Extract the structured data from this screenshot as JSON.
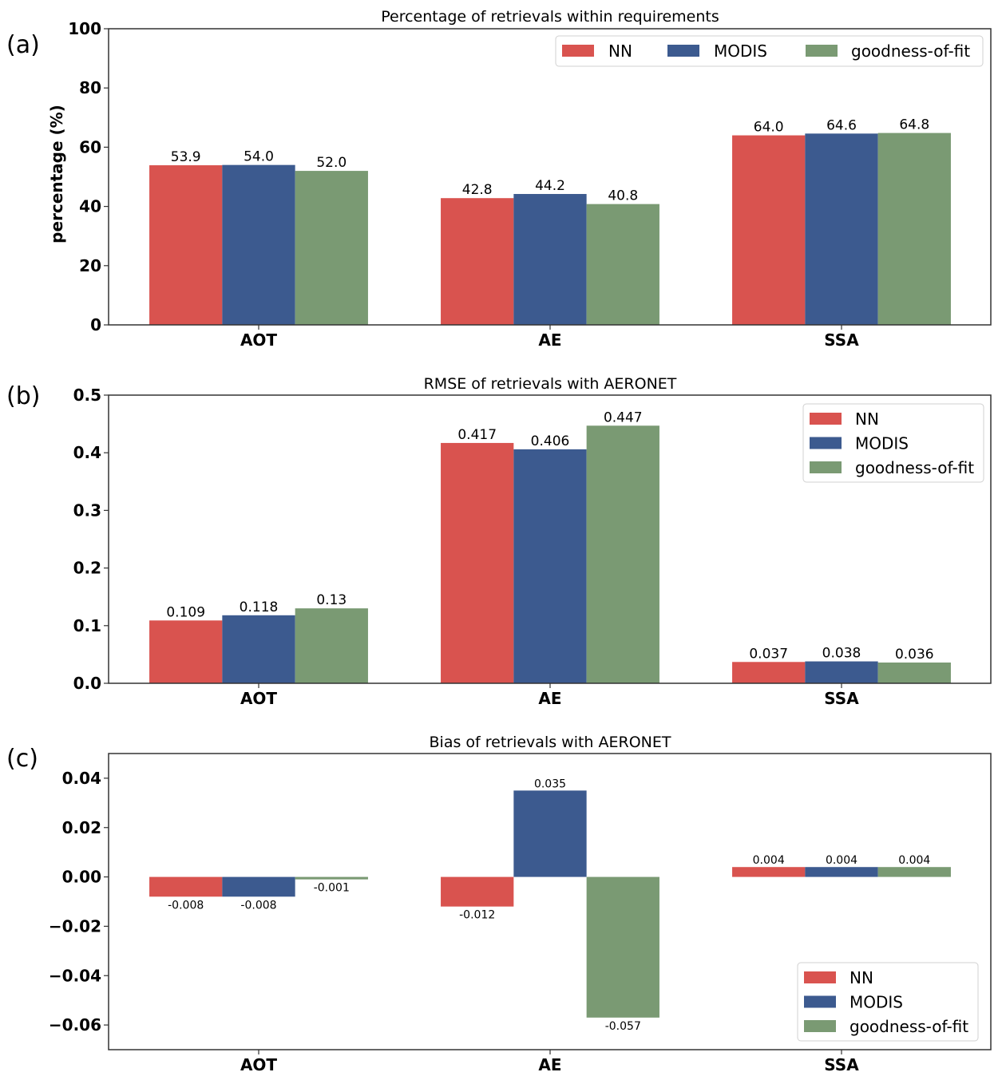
{
  "chart_data": [
    {
      "type": "bar",
      "panel_label": "(a)",
      "title": "Percentage of retrievals within requirements",
      "xlabel": "",
      "ylabel": "percentage (%)",
      "categories": [
        "AOT",
        "AE",
        "SSA"
      ],
      "ylim": [
        0,
        100
      ],
      "yticks": [
        0,
        20,
        40,
        60,
        80,
        100
      ],
      "ytick_labels": [
        "0",
        "20",
        "40",
        "60",
        "80",
        "100"
      ],
      "legend_position": "top-right",
      "legend_layout": "horizontal",
      "series": [
        {
          "name": "NN",
          "color": "#d9534f",
          "values": [
            53.9,
            42.8,
            64.0
          ],
          "labels": [
            "53.9",
            "42.8",
            "64.0"
          ]
        },
        {
          "name": "MODIS",
          "color": "#3c5a8f",
          "values": [
            54.0,
            44.2,
            64.6
          ],
          "labels": [
            "54.0",
            "44.2",
            "64.6"
          ]
        },
        {
          "name": "goodness-of-fit",
          "color": "#7a9a73",
          "values": [
            52.0,
            40.8,
            64.8
          ],
          "labels": [
            "52.0",
            "40.8",
            "64.8"
          ]
        }
      ]
    },
    {
      "type": "bar",
      "panel_label": "(b)",
      "title": "RMSE of retrievals with AERONET",
      "xlabel": "",
      "ylabel": "",
      "categories": [
        "AOT",
        "AE",
        "SSA"
      ],
      "ylim": [
        0,
        0.5
      ],
      "yticks": [
        0,
        0.1,
        0.2,
        0.3,
        0.4,
        0.5
      ],
      "ytick_labels": [
        "0.0",
        "0.1",
        "0.2",
        "0.3",
        "0.4",
        "0.5"
      ],
      "legend_position": "top-right",
      "legend_layout": "vertical",
      "series": [
        {
          "name": "NN",
          "color": "#d9534f",
          "values": [
            0.109,
            0.417,
            0.037
          ],
          "labels": [
            "0.109",
            "0.417",
            "0.037"
          ]
        },
        {
          "name": "MODIS",
          "color": "#3c5a8f",
          "values": [
            0.118,
            0.406,
            0.038
          ],
          "labels": [
            "0.118",
            "0.406",
            "0.038"
          ]
        },
        {
          "name": "goodness-of-fit",
          "color": "#7a9a73",
          "values": [
            0.13,
            0.447,
            0.036
          ],
          "labels": [
            "0.13",
            "0.447",
            "0.036"
          ]
        }
      ]
    },
    {
      "type": "bar",
      "panel_label": "(c)",
      "title": "Bias of retrievals with AERONET",
      "xlabel": "",
      "ylabel": "",
      "categories": [
        "AOT",
        "AE",
        "SSA"
      ],
      "ylim": [
        -0.07,
        0.05
      ],
      "yticks": [
        -0.06,
        -0.04,
        -0.02,
        0.0,
        0.02,
        0.04
      ],
      "ytick_labels": [
        "−0.06",
        "−0.04",
        "−0.02",
        "0.00",
        "0.02",
        "0.04"
      ],
      "legend_position": "bottom-right",
      "legend_layout": "vertical",
      "series": [
        {
          "name": "NN",
          "color": "#d9534f",
          "values": [
            -0.008,
            -0.012,
            0.004
          ],
          "labels": [
            "-0.008",
            "-0.012",
            "0.004"
          ]
        },
        {
          "name": "MODIS",
          "color": "#3c5a8f",
          "values": [
            -0.008,
            0.035,
            0.004
          ],
          "labels": [
            "-0.008",
            "0.035",
            "0.004"
          ]
        },
        {
          "name": "goodness-of-fit",
          "color": "#7a9a73",
          "values": [
            -0.001,
            -0.057,
            0.004
          ],
          "labels": [
            "-0.001",
            "-0.057",
            "0.004"
          ]
        }
      ]
    }
  ]
}
